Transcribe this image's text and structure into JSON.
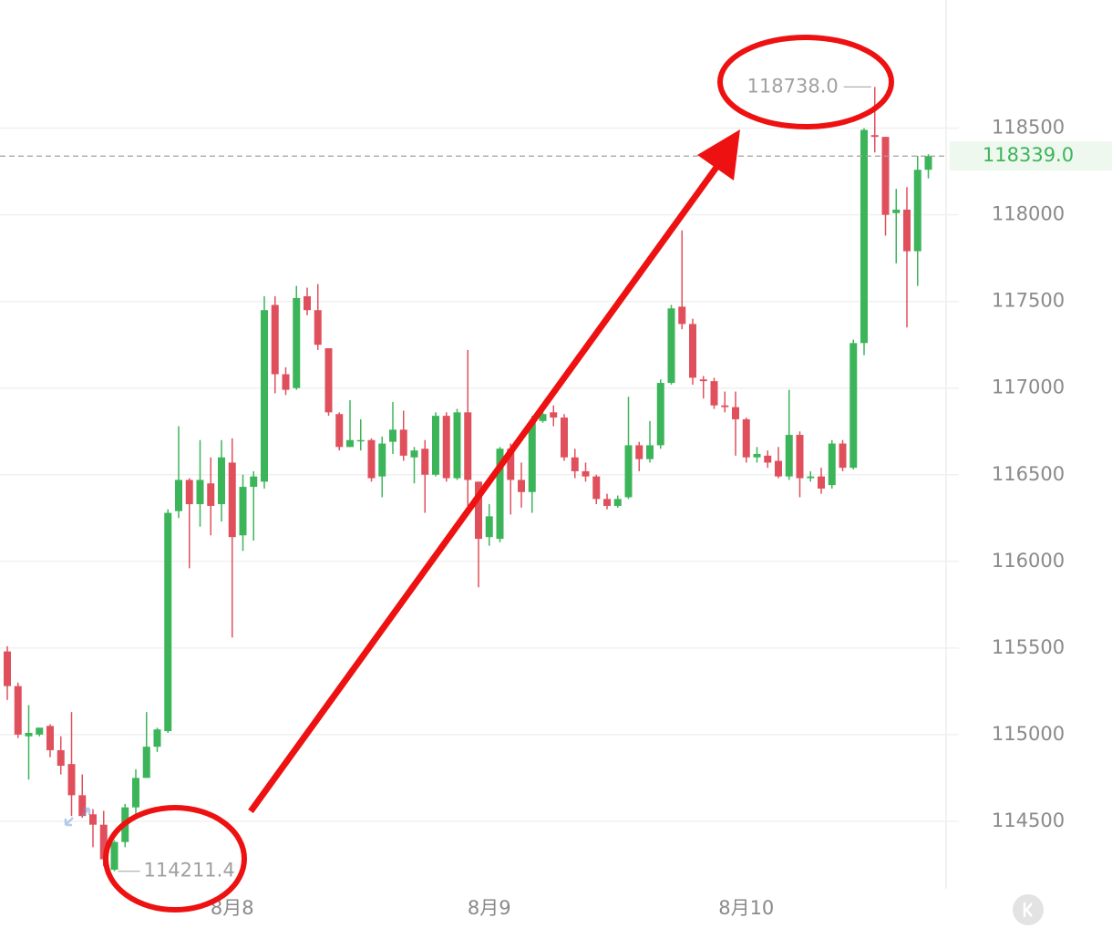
{
  "chart_data": {
    "type": "candlestick",
    "categories": [
      null,
      null,
      null,
      null,
      null,
      null,
      null,
      null,
      null,
      null,
      null,
      null,
      null,
      null,
      null,
      null,
      null,
      null,
      null,
      null,
      null,
      "8月8",
      null,
      null,
      null,
      null,
      null,
      null,
      null,
      null,
      null,
      null,
      null,
      null,
      null,
      null,
      null,
      null,
      null,
      null,
      null,
      null,
      null,
      null,
      null,
      "8月9",
      null,
      null,
      null,
      null,
      null,
      null,
      null,
      null,
      null,
      null,
      null,
      null,
      null,
      null,
      null,
      null,
      null,
      null,
      null,
      null,
      null,
      null,
      null,
      "8月10",
      null,
      null,
      null,
      null,
      null,
      null,
      null,
      null,
      null,
      null,
      null,
      null,
      null,
      null,
      null,
      null,
      null
    ],
    "open": [
      115480,
      115280,
      114990,
      115000,
      115050,
      114910,
      114830,
      114650,
      114540,
      114480,
      114220,
      114380,
      114580,
      114750,
      114930,
      115020,
      116290,
      116470,
      116330,
      116450,
      116330,
      116570,
      116150,
      116430,
      116460,
      117480,
      117080,
      117000,
      117530,
      117450,
      117230,
      116850,
      116660,
      116700,
      116700,
      116490,
      116690,
      116760,
      116600,
      116650,
      116500,
      116840,
      116480,
      116860,
      116460,
      116140,
      116130,
      116650,
      116470,
      116400,
      116810,
      116860,
      116830,
      116600,
      116520,
      116490,
      116360,
      116320,
      116370,
      116670,
      116590,
      116670,
      117030,
      117470,
      117370,
      117050,
      117040,
      116900,
      116890,
      116820,
      116600,
      116610,
      116580,
      116490,
      116730,
      116480,
      116490,
      116440,
      116680,
      116540,
      117260,
      118460,
      118450,
      118010,
      118030,
      117790,
      118260
    ],
    "high": [
      115510,
      115300,
      115170,
      115040,
      115060,
      114990,
      115130,
      114770,
      114570,
      114560,
      114390,
      114600,
      114800,
      115130,
      115040,
      116300,
      116780,
      116480,
      116700,
      116600,
      116700,
      116710,
      116500,
      116520,
      117530,
      117530,
      117120,
      117590,
      117580,
      117600,
      117230,
      116860,
      116930,
      116820,
      116710,
      116720,
      116920,
      116870,
      116660,
      116700,
      116860,
      116860,
      116880,
      117220,
      116460,
      116330,
      116660,
      116680,
      116570,
      116840,
      116900,
      116900,
      116850,
      116650,
      116570,
      116500,
      116390,
      116380,
      116950,
      116690,
      116810,
      117050,
      117480,
      117910,
      117400,
      117070,
      117060,
      116980,
      116980,
      116830,
      116660,
      116640,
      116660,
      116990,
      116750,
      116520,
      116540,
      116700,
      116700,
      117280,
      118500,
      118738,
      118450,
      118150,
      118160,
      118340,
      118350
    ],
    "low": [
      115200,
      114980,
      114740,
      114990,
      114870,
      114770,
      114530,
      114520,
      114350,
      114240,
      114211.4,
      114350,
      114540,
      114750,
      114900,
      115010,
      116250,
      115960,
      116200,
      116150,
      116230,
      115560,
      116060,
      116120,
      116420,
      116970,
      116960,
      116990,
      117420,
      117220,
      116840,
      116640,
      116660,
      116640,
      116460,
      116370,
      116620,
      116580,
      116450,
      116280,
      116490,
      116460,
      116470,
      116320,
      115850,
      116090,
      116110,
      116270,
      116310,
      116280,
      116800,
      116780,
      116580,
      116480,
      116460,
      116330,
      116300,
      116310,
      116360,
      116520,
      116570,
      116650,
      117020,
      117340,
      117020,
      116940,
      116880,
      116860,
      116610,
      116570,
      116570,
      116540,
      116480,
      116470,
      116370,
      116460,
      116390,
      116420,
      116520,
      116530,
      117190,
      118360,
      117880,
      117720,
      117350,
      117590,
      118210
    ],
    "close": [
      115280,
      115000,
      115010,
      115040,
      114910,
      114820,
      114650,
      114530,
      114480,
      114280,
      114380,
      114580,
      114750,
      114930,
      115030,
      116280,
      116470,
      116330,
      116470,
      116320,
      116600,
      116140,
      116430,
      116490,
      117450,
      117080,
      116990,
      117520,
      117450,
      117250,
      116860,
      116660,
      116700,
      116700,
      116480,
      116680,
      116760,
      116610,
      116640,
      116500,
      116840,
      116480,
      116860,
      116470,
      116130,
      116260,
      116650,
      116470,
      116400,
      116800,
      116850,
      116830,
      116600,
      116520,
      116490,
      116360,
      116320,
      116360,
      116670,
      116590,
      116670,
      117030,
      117460,
      117370,
      117060,
      117040,
      116900,
      116890,
      116820,
      116600,
      116620,
      116570,
      116490,
      116730,
      116480,
      116490,
      116420,
      116680,
      116540,
      117260,
      118490,
      118450,
      118000,
      118030,
      117790,
      118260,
      118339
    ],
    "up_color": "#3cb55a",
    "down_color": "#e0505c",
    "ylim": [
      114110,
      119240
    ],
    "yticks": [
      114500,
      115000,
      115500,
      116000,
      116500,
      117000,
      117500,
      118000,
      118500
    ],
    "grid": true,
    "high_label": {
      "value": 118738,
      "label": "118738.0"
    },
    "low_label": {
      "value": 114211.4,
      "label": "114211.4"
    },
    "last_price": {
      "value": 118339,
      "label": "118339.0"
    }
  }
}
